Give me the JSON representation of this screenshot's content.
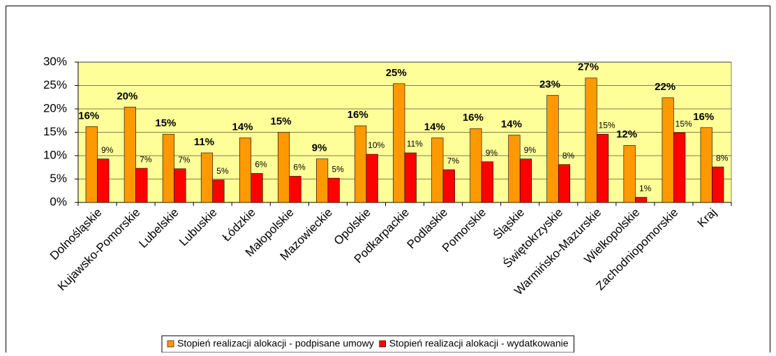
{
  "chart_data": {
    "type": "bar",
    "categories": [
      "Dolnośląskie",
      "Kujawsko-Pomorskie",
      "Lubelskie",
      "Lubuskie",
      "Łódzkie",
      "Małopolskie",
      "Mazowieckie",
      "Opolskie",
      "Podkarpackie",
      "Podlaskie",
      "Pomorskie",
      "Śląskie",
      "Świętokrzyskie",
      "Warmińsko-Mazurskie",
      "Wielkopolskie",
      "Zachodniopomorskie",
      "Kraj"
    ],
    "series": [
      {
        "name": "Stopień realizacji alokacji - podpisane umowy",
        "color": "#ff9900",
        "values": [
          16.2,
          20.4,
          14.6,
          10.6,
          13.8,
          15.0,
          9.3,
          16.4,
          25.4,
          13.8,
          15.8,
          14.4,
          22.9,
          26.6,
          12.2,
          22.4,
          16.0
        ],
        "value_labels": [
          "16%",
          "20%",
          "15%",
          "11%",
          "14%",
          "15%",
          "9%",
          "16%",
          "25%",
          "14%",
          "16%",
          "14%",
          "23%",
          "27%",
          "12%",
          "22%",
          "16%"
        ]
      },
      {
        "name": "Stopień realizacji alokacji - wydatkowanie",
        "color": "#ff0000",
        "values": [
          9.3,
          7.3,
          7.2,
          4.8,
          6.2,
          5.6,
          5.2,
          10.3,
          10.6,
          7.0,
          8.7,
          9.3,
          8.1,
          14.6,
          1.1,
          14.9,
          7.6
        ],
        "value_labels": [
          "9%",
          "7%",
          "7%",
          "5%",
          "6%",
          "6%",
          "5%",
          "10%",
          "11%",
          "7%",
          "9%",
          "9%",
          "8%",
          "15%",
          "1%",
          "15%",
          "8%"
        ]
      }
    ],
    "ylim": [
      0,
      30
    ],
    "yticks": [
      {
        "value": 0,
        "label": "0%"
      },
      {
        "value": 5,
        "label": "5%"
      },
      {
        "value": 10,
        "label": "10%"
      },
      {
        "value": 15,
        "label": "15%"
      },
      {
        "value": 20,
        "label": "20%"
      },
      {
        "value": 25,
        "label": "25%"
      },
      {
        "value": 30,
        "label": "30%"
      }
    ],
    "grid": true,
    "plot_background": "#ffff99",
    "legend": "bottom"
  }
}
